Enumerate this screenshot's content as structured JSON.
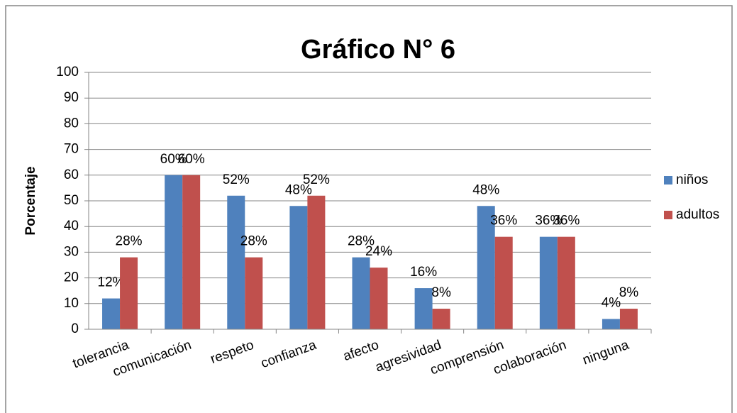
{
  "chart_data": {
    "type": "bar",
    "title": "Gráfico N° 6",
    "y_label": "Porcentaje",
    "categories": [
      "tolerancia",
      "comunicación",
      "respeto",
      "confianza",
      "afecto",
      "agresividad",
      "comprensión",
      "colaboración",
      "ninguna"
    ],
    "series": [
      {
        "name": "niños",
        "color": "#4f81bd",
        "values": [
          12,
          60,
          52,
          48,
          28,
          16,
          48,
          36,
          4
        ],
        "value_labels": [
          "12%",
          "60%",
          "52%",
          "48%",
          "28%",
          "16%",
          "48%",
          "36%",
          "4%"
        ]
      },
      {
        "name": "adultos",
        "color": "#c0504d",
        "values": [
          28,
          60,
          28,
          52,
          24,
          8,
          36,
          36,
          8
        ],
        "value_labels": [
          "28%",
          "60%",
          "28%",
          "52%",
          "24%",
          "8%",
          "36%",
          "36%",
          "8%"
        ]
      }
    ],
    "ylim": [
      0,
      100
    ],
    "yticks": [
      0,
      10,
      20,
      30,
      40,
      50,
      60,
      70,
      80,
      90,
      100
    ],
    "grid": true,
    "legend": "right"
  }
}
